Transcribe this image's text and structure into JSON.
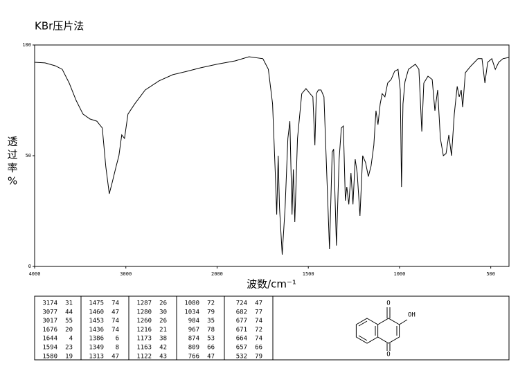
{
  "chart_data": {
    "type": "line",
    "title": "KBr压片法",
    "xlabel": "波数/cm⁻¹",
    "ylabel": "透过率%",
    "xlim": [
      4000,
      400
    ],
    "x_scale_change": 2000,
    "xticks": [
      4000,
      3000,
      2000,
      1500,
      1000,
      500
    ],
    "ylim": [
      0,
      100
    ],
    "yticks": [
      0,
      50,
      100
    ],
    "color": "#000000",
    "x": [
      4000,
      3886,
      3773,
      3697,
      3621,
      3545,
      3470,
      3394,
      3318,
      3258,
      3220,
      3182,
      3152,
      3106,
      3076,
      3045,
      3015,
      2977,
      2902,
      2788,
      2636,
      2485,
      2333,
      2182,
      2000,
      1901,
      1825,
      1749,
      1719,
      1696,
      1681,
      1673,
      1665,
      1658,
      1643,
      1627,
      1612,
      1601,
      1589,
      1582,
      1574,
      1559,
      1536,
      1513,
      1490,
      1475,
      1464,
      1456,
      1445,
      1430,
      1414,
      1399,
      1384,
      1369,
      1361,
      1346,
      1331,
      1319,
      1308,
      1297,
      1289,
      1278,
      1266,
      1255,
      1243,
      1232,
      1217,
      1202,
      1186,
      1171,
      1156,
      1141,
      1129,
      1118,
      1106,
      1095,
      1080,
      1065,
      1046,
      1027,
      1008,
      996,
      989,
      981,
      970,
      951,
      913,
      894,
      878,
      867,
      844,
      821,
      806,
      791,
      776,
      760,
      745,
      730,
      715,
      700,
      684,
      673,
      662,
      654,
      639,
      608,
      570,
      548,
      532,
      517,
      494,
      475,
      456,
      433,
      399
    ],
    "values": [
      92.2,
      91.9,
      90.6,
      89,
      82.8,
      75,
      68.8,
      66.6,
      65.6,
      62.5,
      45,
      32.8,
      37.5,
      45.3,
      50,
      59.4,
      57.8,
      68.8,
      73.4,
      79.7,
      83.8,
      86.6,
      88.1,
      89.7,
      91.3,
      92.8,
      94.7,
      93.8,
      89,
      73.4,
      42.2,
      23.4,
      50,
      26.6,
      5.3,
      26.6,
      57.8,
      65.6,
      23.4,
      43.8,
      20,
      57.8,
      78,
      80.3,
      78,
      76.6,
      54.7,
      78,
      79.7,
      79.7,
      76.6,
      42.2,
      7.8,
      51.6,
      53,
      9.4,
      48.4,
      62.5,
      63.4,
      29.7,
      35.9,
      28,
      42.2,
      28,
      48.4,
      42.2,
      22.8,
      50,
      46.9,
      40.6,
      45.3,
      54.7,
      70.3,
      64,
      73.4,
      78,
      76.6,
      82.8,
      84.4,
      88.1,
      89,
      79.7,
      35.9,
      73.4,
      83.4,
      89,
      91.3,
      89,
      60.9,
      82.8,
      85.9,
      84.4,
      70.3,
      79.7,
      57.8,
      50,
      51,
      59.4,
      50,
      68.8,
      81.3,
      76.6,
      79.7,
      71.9,
      87.5,
      90.6,
      93.8,
      93.8,
      82.8,
      92.2,
      93.8,
      89,
      92.2,
      93.8,
      94.4
    ]
  },
  "peak_table": {
    "columns": [
      [
        [
          3174,
          31
        ],
        [
          3077,
          44
        ],
        [
          3017,
          55
        ],
        [
          1676,
          20
        ],
        [
          1644,
          4
        ],
        [
          1594,
          23
        ],
        [
          1580,
          19
        ]
      ],
      [
        [
          1475,
          74
        ],
        [
          1460,
          47
        ],
        [
          1453,
          74
        ],
        [
          1436,
          74
        ],
        [
          1386,
          6
        ],
        [
          1349,
          8
        ],
        [
          1313,
          47
        ]
      ],
      [
        [
          1287,
          26
        ],
        [
          1280,
          30
        ],
        [
          1260,
          26
        ],
        [
          1216,
          21
        ],
        [
          1173,
          38
        ],
        [
          1163,
          42
        ],
        [
          1122,
          43
        ]
      ],
      [
        [
          1080,
          72
        ],
        [
          1034,
          79
        ],
        [
          984,
          35
        ],
        [
          967,
          78
        ],
        [
          874,
          53
        ],
        [
          809,
          66
        ],
        [
          766,
          47
        ]
      ],
      [
        [
          724,
          47
        ],
        [
          682,
          77
        ],
        [
          677,
          74
        ],
        [
          671,
          72
        ],
        [
          664,
          74
        ],
        [
          657,
          66
        ],
        [
          532,
          79
        ]
      ]
    ]
  },
  "structure": {
    "labels": [
      "O",
      "OH",
      "O"
    ]
  }
}
